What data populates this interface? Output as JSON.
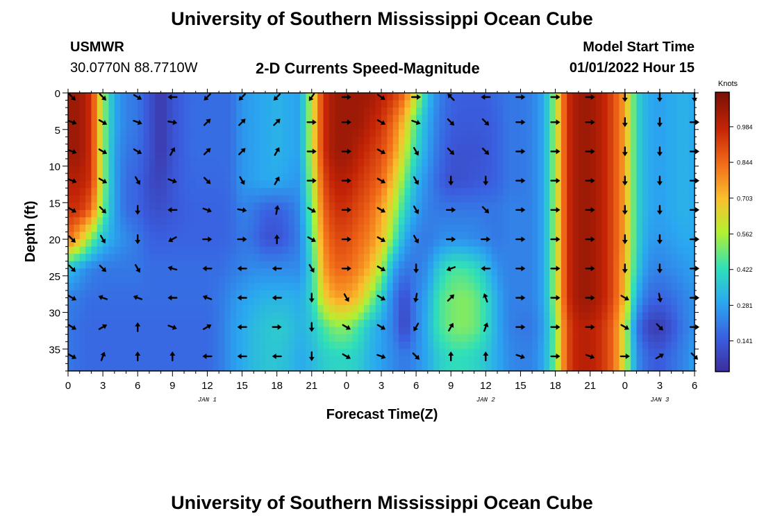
{
  "header": {
    "title": "University of Southern Mississippi Ocean Cube",
    "station": "USMWR",
    "location": "30.0770N  88.7710W",
    "subtitle": "2-D Currents Speed-Magnitude",
    "model_start_label": "Model Start Time",
    "model_start_value": "01/01/2022 Hour 15"
  },
  "footer": {
    "title": "University of Southern Mississippi Ocean Cube"
  },
  "chart_data": {
    "type": "heatmap",
    "title": "2-D Currents Speed-Magnitude",
    "xlabel": "Forecast Time(Z)",
    "ylabel": "Depth (ft)",
    "colorbar_label": "Knots",
    "x_hours": [
      0,
      54
    ],
    "y_depth_ft": [
      0,
      38
    ],
    "x_tick_labels": [
      "0",
      "3",
      "6",
      "9",
      "12",
      "15",
      "18",
      "21",
      "0",
      "3",
      "6",
      "9",
      "12",
      "15",
      "18",
      "21",
      "0",
      "3",
      "6"
    ],
    "y_tick_labels": [
      "0",
      "5",
      "10",
      "15",
      "20",
      "25",
      "30",
      "35"
    ],
    "y_tick_values": [
      0,
      5,
      10,
      15,
      20,
      25,
      30,
      35
    ],
    "day_labels": [
      {
        "text": "JAN 1",
        "hour": 12
      },
      {
        "text": "JAN 2",
        "hour": 36
      },
      {
        "text": "JAN 3",
        "hour": 51
      }
    ],
    "colorbar_ticks": [
      "0.984",
      "0.844",
      "0.703",
      "0.562",
      "0.422",
      "0.281",
      "0.141"
    ],
    "colorbar_values": [
      0.984,
      0.844,
      0.703,
      0.562,
      0.422,
      0.281,
      0.141
    ],
    "colorbar_range": [
      0.02,
      1.12
    ],
    "speed_columns_hours": [
      0,
      1,
      2,
      3,
      4,
      5,
      6,
      7,
      8,
      9,
      10,
      11,
      12,
      13,
      14,
      15,
      16,
      17,
      18,
      19,
      20,
      21,
      22,
      23,
      24,
      25,
      26,
      27,
      28,
      29,
      30,
      31,
      32,
      33,
      34,
      35,
      36,
      37,
      38,
      39,
      40,
      41,
      42,
      43,
      44,
      45,
      46,
      47,
      48,
      49,
      50,
      51,
      52,
      53,
      54
    ],
    "speed_rows_depth_ft": [
      0,
      4,
      8,
      12,
      16,
      20,
      24,
      28,
      32,
      36
    ],
    "speed": [
      [
        1.05,
        1.05,
        0.95,
        0.55,
        0.3,
        0.22,
        0.2,
        0.12,
        0.05,
        0.12,
        0.16,
        0.18,
        0.18,
        0.18,
        0.18,
        0.26,
        0.28,
        0.3,
        0.32,
        0.3,
        0.28,
        0.6,
        0.95,
        1.05,
        1.05,
        1.05,
        1.05,
        1.0,
        0.95,
        0.85,
        0.6,
        0.35,
        0.22,
        0.16,
        0.15,
        0.15,
        0.15,
        0.18,
        0.2,
        0.2,
        0.22,
        0.3,
        0.55,
        0.95,
        1.05,
        1.05,
        1.0,
        0.9,
        0.75,
        0.4,
        0.3,
        0.28,
        0.3,
        0.32,
        0.3
      ],
      [
        1.05,
        1.05,
        0.95,
        0.55,
        0.3,
        0.22,
        0.2,
        0.12,
        0.05,
        0.12,
        0.16,
        0.18,
        0.18,
        0.18,
        0.18,
        0.26,
        0.28,
        0.3,
        0.32,
        0.3,
        0.28,
        0.6,
        0.95,
        1.05,
        1.05,
        1.05,
        1.0,
        0.95,
        0.85,
        0.7,
        0.45,
        0.3,
        0.2,
        0.15,
        0.14,
        0.14,
        0.14,
        0.16,
        0.2,
        0.2,
        0.22,
        0.3,
        0.55,
        0.95,
        1.05,
        1.05,
        1.0,
        0.9,
        0.75,
        0.4,
        0.3,
        0.28,
        0.3,
        0.32,
        0.3
      ],
      [
        1.05,
        1.05,
        0.95,
        0.55,
        0.28,
        0.2,
        0.18,
        0.12,
        0.05,
        0.12,
        0.16,
        0.18,
        0.18,
        0.18,
        0.18,
        0.26,
        0.28,
        0.3,
        0.32,
        0.3,
        0.28,
        0.6,
        0.95,
        1.05,
        1.05,
        1.0,
        0.95,
        0.9,
        0.8,
        0.6,
        0.4,
        0.28,
        0.18,
        0.13,
        0.12,
        0.12,
        0.13,
        0.16,
        0.2,
        0.2,
        0.22,
        0.3,
        0.55,
        0.95,
        1.05,
        1.05,
        1.0,
        0.9,
        0.75,
        0.4,
        0.3,
        0.28,
        0.3,
        0.32,
        0.3
      ],
      [
        1.0,
        1.0,
        0.95,
        0.55,
        0.28,
        0.18,
        0.16,
        0.1,
        0.08,
        0.13,
        0.16,
        0.17,
        0.17,
        0.17,
        0.18,
        0.26,
        0.28,
        0.3,
        0.3,
        0.28,
        0.26,
        0.55,
        0.9,
        1.0,
        1.0,
        0.95,
        0.9,
        0.85,
        0.7,
        0.5,
        0.32,
        0.24,
        0.16,
        0.11,
        0.12,
        0.13,
        0.14,
        0.16,
        0.2,
        0.2,
        0.22,
        0.3,
        0.55,
        0.95,
        1.05,
        1.05,
        1.0,
        0.9,
        0.75,
        0.4,
        0.3,
        0.28,
        0.3,
        0.32,
        0.3
      ],
      [
        0.95,
        0.95,
        0.85,
        0.5,
        0.28,
        0.18,
        0.16,
        0.12,
        0.11,
        0.13,
        0.15,
        0.16,
        0.16,
        0.16,
        0.17,
        0.22,
        0.2,
        0.16,
        0.15,
        0.18,
        0.24,
        0.5,
        0.85,
        0.95,
        0.95,
        0.9,
        0.85,
        0.75,
        0.6,
        0.4,
        0.28,
        0.22,
        0.2,
        0.2,
        0.2,
        0.2,
        0.2,
        0.2,
        0.22,
        0.22,
        0.22,
        0.3,
        0.55,
        0.95,
        1.05,
        1.05,
        1.0,
        0.9,
        0.75,
        0.4,
        0.3,
        0.28,
        0.3,
        0.32,
        0.3
      ],
      [
        0.85,
        0.7,
        0.5,
        0.35,
        0.28,
        0.24,
        0.2,
        0.16,
        0.15,
        0.16,
        0.16,
        0.16,
        0.16,
        0.16,
        0.17,
        0.2,
        0.18,
        0.12,
        0.12,
        0.16,
        0.22,
        0.45,
        0.8,
        0.9,
        0.9,
        0.85,
        0.8,
        0.7,
        0.5,
        0.3,
        0.22,
        0.2,
        0.24,
        0.25,
        0.25,
        0.24,
        0.22,
        0.2,
        0.22,
        0.22,
        0.22,
        0.3,
        0.55,
        0.95,
        1.05,
        1.05,
        1.0,
        0.9,
        0.75,
        0.4,
        0.28,
        0.26,
        0.28,
        0.3,
        0.3
      ],
      [
        0.35,
        0.28,
        0.22,
        0.2,
        0.2,
        0.2,
        0.2,
        0.18,
        0.18,
        0.18,
        0.18,
        0.18,
        0.18,
        0.18,
        0.2,
        0.22,
        0.24,
        0.24,
        0.24,
        0.24,
        0.24,
        0.4,
        0.75,
        0.85,
        0.85,
        0.8,
        0.72,
        0.55,
        0.3,
        0.2,
        0.2,
        0.25,
        0.38,
        0.45,
        0.45,
        0.42,
        0.35,
        0.25,
        0.22,
        0.22,
        0.22,
        0.3,
        0.55,
        0.95,
        1.05,
        1.05,
        1.0,
        0.9,
        0.72,
        0.38,
        0.24,
        0.22,
        0.24,
        0.26,
        0.28
      ],
      [
        0.22,
        0.2,
        0.18,
        0.18,
        0.18,
        0.18,
        0.18,
        0.18,
        0.18,
        0.18,
        0.18,
        0.18,
        0.18,
        0.2,
        0.24,
        0.28,
        0.3,
        0.32,
        0.32,
        0.32,
        0.3,
        0.4,
        0.65,
        0.75,
        0.75,
        0.7,
        0.55,
        0.38,
        0.22,
        0.1,
        0.22,
        0.3,
        0.45,
        0.5,
        0.52,
        0.5,
        0.42,
        0.3,
        0.22,
        0.22,
        0.22,
        0.3,
        0.55,
        0.95,
        1.05,
        1.05,
        1.0,
        0.9,
        0.7,
        0.3,
        0.18,
        0.16,
        0.18,
        0.22,
        0.25
      ],
      [
        0.2,
        0.18,
        0.17,
        0.17,
        0.17,
        0.17,
        0.17,
        0.17,
        0.17,
        0.17,
        0.17,
        0.17,
        0.17,
        0.2,
        0.26,
        0.3,
        0.34,
        0.36,
        0.38,
        0.36,
        0.32,
        0.36,
        0.45,
        0.52,
        0.52,
        0.45,
        0.35,
        0.28,
        0.22,
        0.08,
        0.22,
        0.32,
        0.45,
        0.5,
        0.52,
        0.5,
        0.42,
        0.3,
        0.22,
        0.2,
        0.2,
        0.28,
        0.5,
        0.9,
        1.0,
        1.0,
        0.95,
        0.85,
        0.6,
        0.2,
        0.08,
        0.06,
        0.12,
        0.2,
        0.25
      ],
      [
        0.2,
        0.18,
        0.17,
        0.17,
        0.17,
        0.17,
        0.17,
        0.17,
        0.17,
        0.17,
        0.17,
        0.17,
        0.17,
        0.2,
        0.26,
        0.3,
        0.34,
        0.36,
        0.36,
        0.34,
        0.3,
        0.33,
        0.38,
        0.4,
        0.4,
        0.38,
        0.32,
        0.28,
        0.24,
        0.2,
        0.24,
        0.3,
        0.38,
        0.42,
        0.42,
        0.4,
        0.36,
        0.3,
        0.24,
        0.22,
        0.22,
        0.3,
        0.5,
        0.9,
        1.0,
        1.0,
        0.95,
        0.85,
        0.6,
        0.25,
        0.16,
        0.14,
        0.18,
        0.22,
        0.28
      ]
    ],
    "arrow_columns_hours": [
      0,
      3,
      6,
      9,
      12,
      15,
      18,
      21,
      24,
      27,
      30,
      33,
      36,
      39,
      42,
      45,
      48,
      51,
      54
    ],
    "arrow_rows_depth_ft": [
      0,
      4,
      8,
      12,
      16,
      20,
      24,
      28,
      32,
      36
    ],
    "arrow_angles_deg": [
      [
        45,
        45,
        30,
        180,
        135,
        135,
        135,
        125,
        0,
        35,
        0,
        225,
        180,
        0,
        0,
        0,
        90,
        90,
        90
      ],
      [
        20,
        30,
        20,
        10,
        315,
        315,
        315,
        0,
        0,
        30,
        20,
        45,
        45,
        0,
        0,
        0,
        90,
        90,
        0
      ],
      [
        20,
        30,
        30,
        300,
        315,
        315,
        300,
        0,
        0,
        30,
        60,
        45,
        45,
        0,
        0,
        0,
        90,
        90,
        0
      ],
      [
        20,
        30,
        60,
        20,
        45,
        60,
        300,
        0,
        0,
        30,
        60,
        90,
        90,
        0,
        0,
        0,
        90,
        90,
        0
      ],
      [
        30,
        45,
        90,
        180,
        20,
        10,
        280,
        30,
        0,
        30,
        60,
        0,
        45,
        0,
        0,
        0,
        90,
        90,
        0
      ],
      [
        45,
        60,
        90,
        150,
        0,
        0,
        270,
        30,
        0,
        30,
        60,
        0,
        0,
        0,
        0,
        0,
        90,
        90,
        0
      ],
      [
        45,
        45,
        60,
        195,
        180,
        180,
        180,
        60,
        0,
        30,
        90,
        160,
        180,
        0,
        0,
        0,
        90,
        90,
        0
      ],
      [
        30,
        200,
        200,
        180,
        200,
        180,
        180,
        90,
        60,
        30,
        100,
        315,
        250,
        0,
        0,
        0,
        30,
        80,
        0
      ],
      [
        30,
        330,
        270,
        20,
        330,
        180,
        0,
        90,
        30,
        30,
        120,
        300,
        290,
        0,
        0,
        0,
        30,
        45,
        0
      ],
      [
        30,
        290,
        270,
        270,
        180,
        180,
        180,
        90,
        30,
        20,
        45,
        270,
        270,
        20,
        0,
        20,
        0,
        330,
        45
      ]
    ]
  }
}
